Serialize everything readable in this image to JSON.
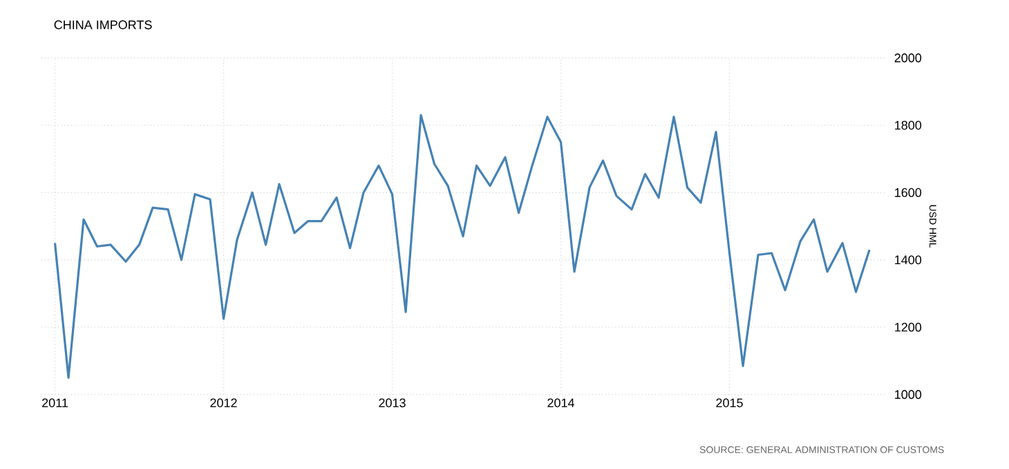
{
  "chart_data": {
    "type": "line",
    "title": "CHINA IMPORTS",
    "ylabel": "USD HML",
    "annotations": [
      "SOURCE: GENERAL ADMINISTRATION OF CUSTOMS"
    ],
    "x": [
      "2011-01",
      "2011-02",
      "2011-03",
      "2011-04",
      "2011-05",
      "2011-06",
      "2011-07",
      "2011-08",
      "2011-09",
      "2011-10",
      "2011-11",
      "2011-12",
      "2012-01",
      "2012-02",
      "2012-03",
      "2012-04",
      "2012-05",
      "2012-06",
      "2012-07",
      "2012-08",
      "2012-09",
      "2012-10",
      "2012-11",
      "2012-12",
      "2013-01",
      "2013-02",
      "2013-03",
      "2013-04",
      "2013-05",
      "2013-06",
      "2013-07",
      "2013-08",
      "2013-09",
      "2013-10",
      "2013-11",
      "2013-12",
      "2014-01",
      "2014-02",
      "2014-03",
      "2014-04",
      "2014-05",
      "2014-06",
      "2014-07",
      "2014-08",
      "2014-09",
      "2014-10",
      "2014-11",
      "2014-12",
      "2015-01",
      "2015-02",
      "2015-03",
      "2015-04",
      "2015-05",
      "2015-06",
      "2015-07",
      "2015-08",
      "2015-09",
      "2015-10",
      "2015-11"
    ],
    "series": [
      {
        "color": "#4682b4",
        "values": [
          1450,
          1050,
          1520,
          1440,
          1445,
          1395,
          1445,
          1555,
          1550,
          1400,
          1595,
          1580,
          1225,
          1460,
          1600,
          1445,
          1625,
          1480,
          1515,
          1515,
          1585,
          1435,
          1600,
          1680,
          1595,
          1245,
          1830,
          1685,
          1620,
          1470,
          1680,
          1620,
          1705,
          1540,
          1680,
          1825,
          1750,
          1365,
          1615,
          1695,
          1590,
          1550,
          1655,
          1585,
          1825,
          1615,
          1570,
          1780,
          1420,
          1085,
          1415,
          1420,
          1310,
          1455,
          1520,
          1365,
          1450,
          1305,
          1430
        ]
      }
    ],
    "xlim": [
      "2010-12",
      "2015-12"
    ],
    "ylim": [
      1000,
      2000
    ],
    "xticks": [
      "2011",
      "2012",
      "2013",
      "2014",
      "2015"
    ],
    "yticks": [
      1000,
      1200,
      1400,
      1600,
      1800,
      2000
    ],
    "grid": true,
    "marker": "none",
    "line_style": "solid"
  }
}
